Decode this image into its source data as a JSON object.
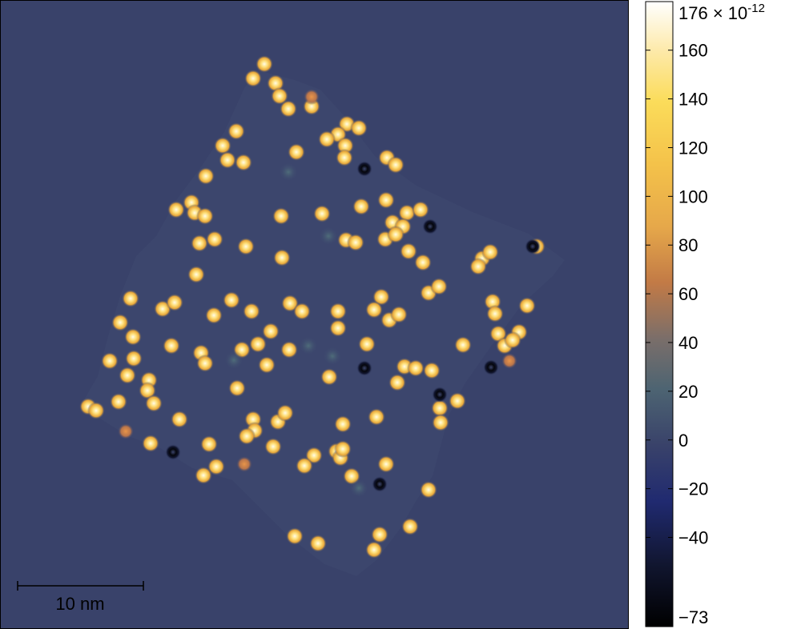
{
  "image": {
    "background_color": "#39426a",
    "flake_color": "#3c466d",
    "colormap": [
      "#000000",
      "#1e2a70",
      "#3a4470",
      "#4f6d7a",
      "#b8744a",
      "#f2b93a",
      "#ffe08a",
      "#ffffff"
    ]
  },
  "scalebar": {
    "label": "10 nm"
  },
  "colorbar": {
    "max_label": "176 × 10",
    "max_exponent": "-12",
    "min_label": "−73",
    "ticks": [
      "160",
      "140",
      "120",
      "100",
      "80",
      "60",
      "40",
      "20",
      "0",
      "−20",
      "−40"
    ],
    "tick_values": [
      176,
      160,
      140,
      120,
      100,
      80,
      60,
      40,
      20,
      0,
      -20,
      -40,
      -73
    ],
    "range": [
      -73,
      176
    ]
  }
}
